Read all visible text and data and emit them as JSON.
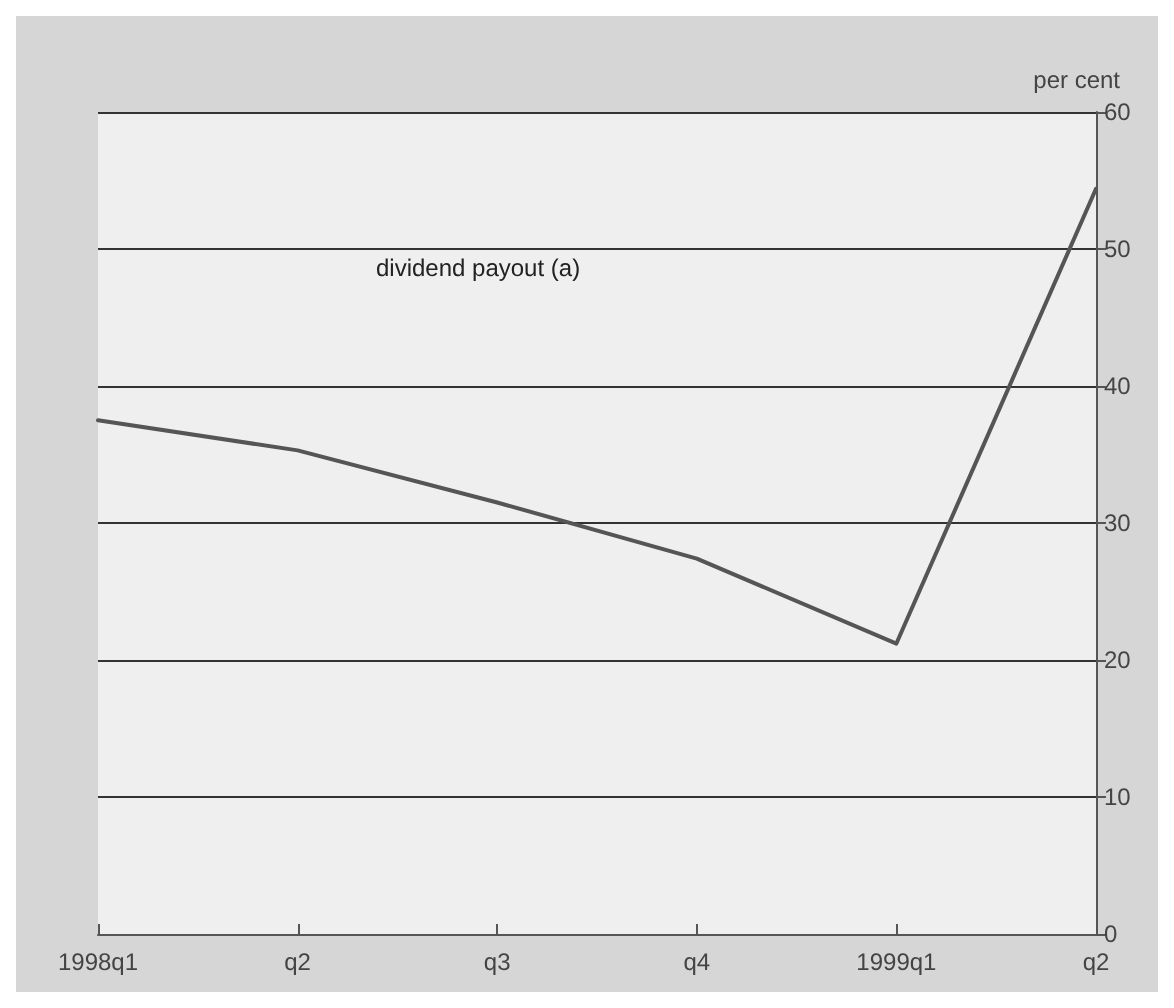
{
  "chart_data": {
    "type": "line",
    "categories": [
      "1998q1",
      "q2",
      "q3",
      "q4",
      "1999q1",
      "q2"
    ],
    "values": [
      37.5,
      35.3,
      31.5,
      27.4,
      21.2,
      54.4
    ],
    "color": "#555555",
    "ylabel": "per cent",
    "annotations": [
      "dividend payout (a)"
    ],
    "ylim": [
      0,
      60
    ],
    "yticks": [
      0,
      10,
      20,
      30,
      40,
      50,
      60
    ],
    "grid": "y",
    "marker": "none",
    "line_style": "solid"
  }
}
